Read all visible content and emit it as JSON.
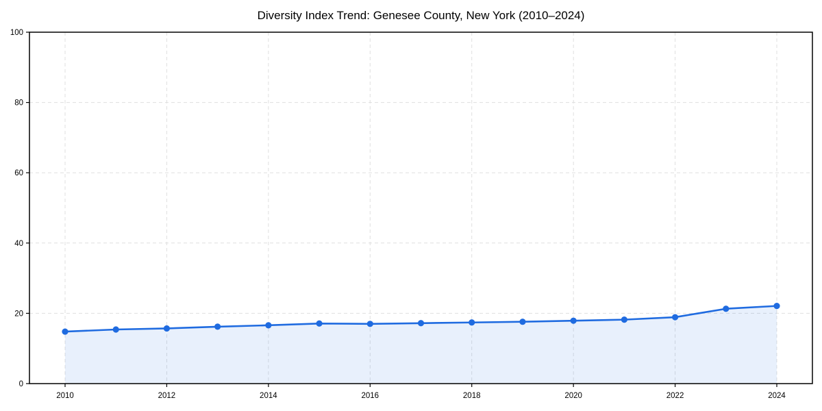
{
  "chart_data": {
    "type": "line",
    "title": "Diversity Index Trend: Genesee County, New York (2010–2024)",
    "x": [
      2010,
      2011,
      2012,
      2013,
      2014,
      2015,
      2016,
      2017,
      2018,
      2019,
      2020,
      2021,
      2022,
      2023,
      2024
    ],
    "values": [
      14.8,
      15.4,
      15.7,
      16.2,
      16.6,
      17.1,
      17.0,
      17.2,
      17.4,
      17.6,
      17.9,
      18.2,
      18.9,
      21.3,
      22.1
    ],
    "xlabel": "",
    "ylabel": "",
    "ylim": [
      0,
      100
    ],
    "xticks": [
      2010,
      2012,
      2014,
      2016,
      2018,
      2020,
      2022,
      2024
    ],
    "yticks": [
      0,
      20,
      40,
      60,
      80,
      100
    ],
    "grid": "dashed-both-axes",
    "legend_position": "none",
    "marker_style": "circle",
    "colors": {
      "line": "#1f6be0",
      "marker": "#1f6be0",
      "area_fill": "rgba(31, 107, 224, 0.10)",
      "gridline": "#dfdfdf",
      "axis": "#000000",
      "tick_text": "#000000",
      "background": "#ffffff"
    }
  }
}
